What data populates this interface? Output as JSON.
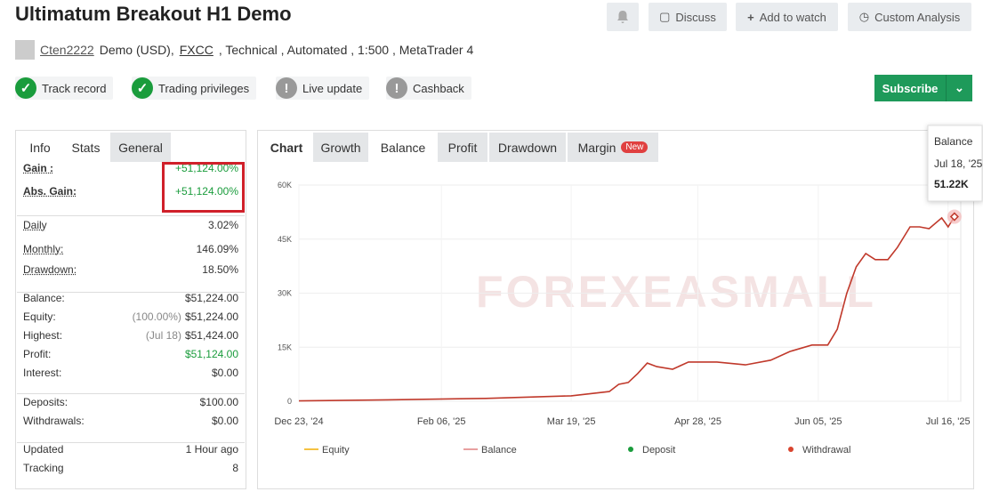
{
  "header": {
    "title": "Ultimatum Breakout H1 Demo",
    "buttons": [
      "Discuss",
      "Add to watch",
      "Custom Analysis"
    ],
    "user": "Cten2222",
    "details": "Demo (USD),",
    "broker": "FXCC",
    "details2": ", Technical , Automated , 1:500 , MetaTrader 4"
  },
  "badges": [
    {
      "label": "Track record",
      "ok": true
    },
    {
      "label": "Trading privileges",
      "ok": true
    },
    {
      "label": "Live update",
      "ok": false
    },
    {
      "label": "Cashback",
      "ok": false
    }
  ],
  "subscribe": "Subscribe",
  "stats": {
    "tabs": [
      "Info",
      "Stats",
      "General"
    ],
    "groups": [
      [
        {
          "label": "Gain :",
          "value": "+51,124.00%",
          "color": "#1a9c3c"
        },
        {
          "label": "Abs. Gain:",
          "value": "+51,124.00%",
          "color": "#1a9c3c"
        }
      ],
      [
        {
          "label": "Daily",
          "value": "3.02%"
        },
        {
          "label": "Monthly:",
          "value": "146.09%"
        },
        {
          "label": "Drawdown:",
          "value": "18.50%"
        }
      ],
      [
        {
          "label": "Balance:",
          "value": "$51,224.00"
        },
        {
          "label": "Equity:",
          "note": "(100.00%)",
          "value": "$51,224.00"
        },
        {
          "label": "Highest:",
          "note": "(Jul 18)",
          "value": "$51,424.00"
        },
        {
          "label": "Profit:",
          "value": "$51,124.00",
          "color": "#1a9c3c"
        },
        {
          "label": "Interest:",
          "value": "$0.00"
        }
      ],
      [
        {
          "label": "Deposits:",
          "value": "$100.00"
        },
        {
          "label": "Withdrawals:",
          "value": "$0.00"
        }
      ],
      [
        {
          "label": "Updated",
          "value": "1 Hour ago"
        },
        {
          "label": "Tracking",
          "value": "8"
        }
      ]
    ]
  },
  "chart_tabs": [
    "Chart",
    "Growth",
    "Balance",
    "Profit",
    "Drawdown",
    "Margin"
  ],
  "new_badge": "New",
  "watermark": "FOREXEASMALL",
  "chart_data": {
    "type": "line",
    "grid": true,
    "xlim": [
      "2024-12-23",
      "2025-07-20"
    ],
    "xticks": [
      {
        "value": "2024-12-23",
        "label": "Dec 23, '24"
      },
      {
        "value": "2025-02-06",
        "label": "Feb 06, '25"
      },
      {
        "value": "2025-03-19",
        "label": "Mar 19, '25"
      },
      {
        "value": "2025-04-28",
        "label": "Apr 28, '25"
      },
      {
        "value": "2025-06-05",
        "label": "Jun 05, '25"
      },
      {
        "value": "2025-07-16",
        "label": "Jul 16, '25"
      }
    ],
    "ylim": [
      0,
      60000
    ],
    "yticks": [
      0,
      {
        "value": 15000,
        "label": "15K"
      },
      {
        "value": 30000,
        "label": "30K"
      },
      {
        "value": 45000,
        "label": "45K"
      },
      {
        "value": 60000,
        "label": "60K"
      }
    ],
    "series": [
      {
        "name": "Balance",
        "color": "#c0392b",
        "x": [
          "2024-12-23",
          "2025-01-20",
          "2025-02-20",
          "2025-03-19",
          "2025-03-31",
          "2025-04-03",
          "2025-04-06",
          "2025-04-09",
          "2025-04-12",
          "2025-04-15",
          "2025-04-20",
          "2025-04-25",
          "2025-05-04",
          "2025-05-13",
          "2025-05-21",
          "2025-05-27",
          "2025-06-03",
          "2025-06-08",
          "2025-06-11",
          "2025-06-14",
          "2025-06-17",
          "2025-06-20",
          "2025-06-23",
          "2025-06-27",
          "2025-06-30",
          "2025-07-04",
          "2025-07-07",
          "2025-07-10",
          "2025-07-14",
          "2025-07-16",
          "2025-07-18"
        ],
        "values": [
          100,
          400,
          800,
          1500,
          2700,
          4700,
          5200,
          7700,
          10600,
          9600,
          8900,
          10900,
          10900,
          10100,
          11400,
          13800,
          15600,
          15600,
          20000,
          29900,
          37300,
          41000,
          39300,
          39300,
          42700,
          48400,
          48400,
          47900,
          50900,
          48400,
          51220
        ]
      }
    ],
    "legend": [
      {
        "name": "Equity",
        "color": "#f5c242",
        "marker": "line"
      },
      {
        "name": "Balance",
        "color": "#e8a0a0",
        "marker": "line"
      },
      {
        "name": "Deposit",
        "color": "#1a9c3c",
        "marker": "dot"
      },
      {
        "name": "Withdrawal",
        "color": "#d9442e",
        "marker": "dot"
      }
    ],
    "tooltip": {
      "date": "Jul 18, '25",
      "value_label": "51.22K"
    }
  }
}
